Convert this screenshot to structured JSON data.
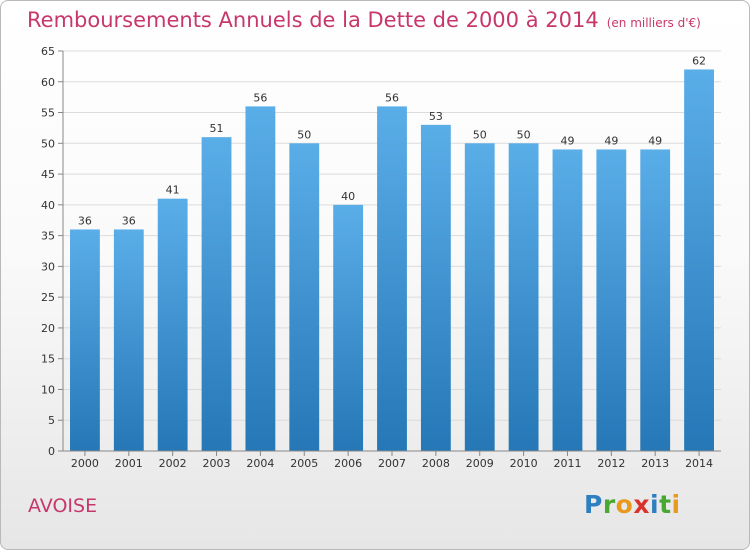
{
  "chart_data": {
    "type": "bar",
    "title": "Remboursements Annuels de la Dette de 2000 à 2014",
    "subtitle": "(en milliers d'€)",
    "categories": [
      "2000",
      "2001",
      "2002",
      "2003",
      "2004",
      "2005",
      "2006",
      "2007",
      "2008",
      "2009",
      "2010",
      "2011",
      "2012",
      "2013",
      "2014"
    ],
    "values": [
      36,
      36,
      41,
      51,
      56,
      50,
      40,
      56,
      53,
      50,
      50,
      49,
      49,
      49,
      62
    ],
    "ylim": [
      0,
      65
    ],
    "yticks": [
      0,
      5,
      10,
      15,
      20,
      25,
      30,
      35,
      40,
      45,
      50,
      55,
      60,
      65
    ],
    "grid": true,
    "bar_color_top": "#5aaee8",
    "bar_color_bottom": "#2577b6"
  },
  "footer": {
    "place": "AVOISE",
    "logo_text": "Proxiti",
    "logo_letters": [
      {
        "ch": "P",
        "color": "#2d7fc1"
      },
      {
        "ch": "r",
        "color": "#49a832"
      },
      {
        "ch": "o",
        "color": "#e89a1e"
      },
      {
        "ch": "x",
        "color": "#d9332d"
      },
      {
        "ch": "i",
        "color": "#2d7fc1"
      },
      {
        "ch": "t",
        "color": "#49a832"
      },
      {
        "ch": "i",
        "color": "#e89a1e"
      }
    ]
  }
}
